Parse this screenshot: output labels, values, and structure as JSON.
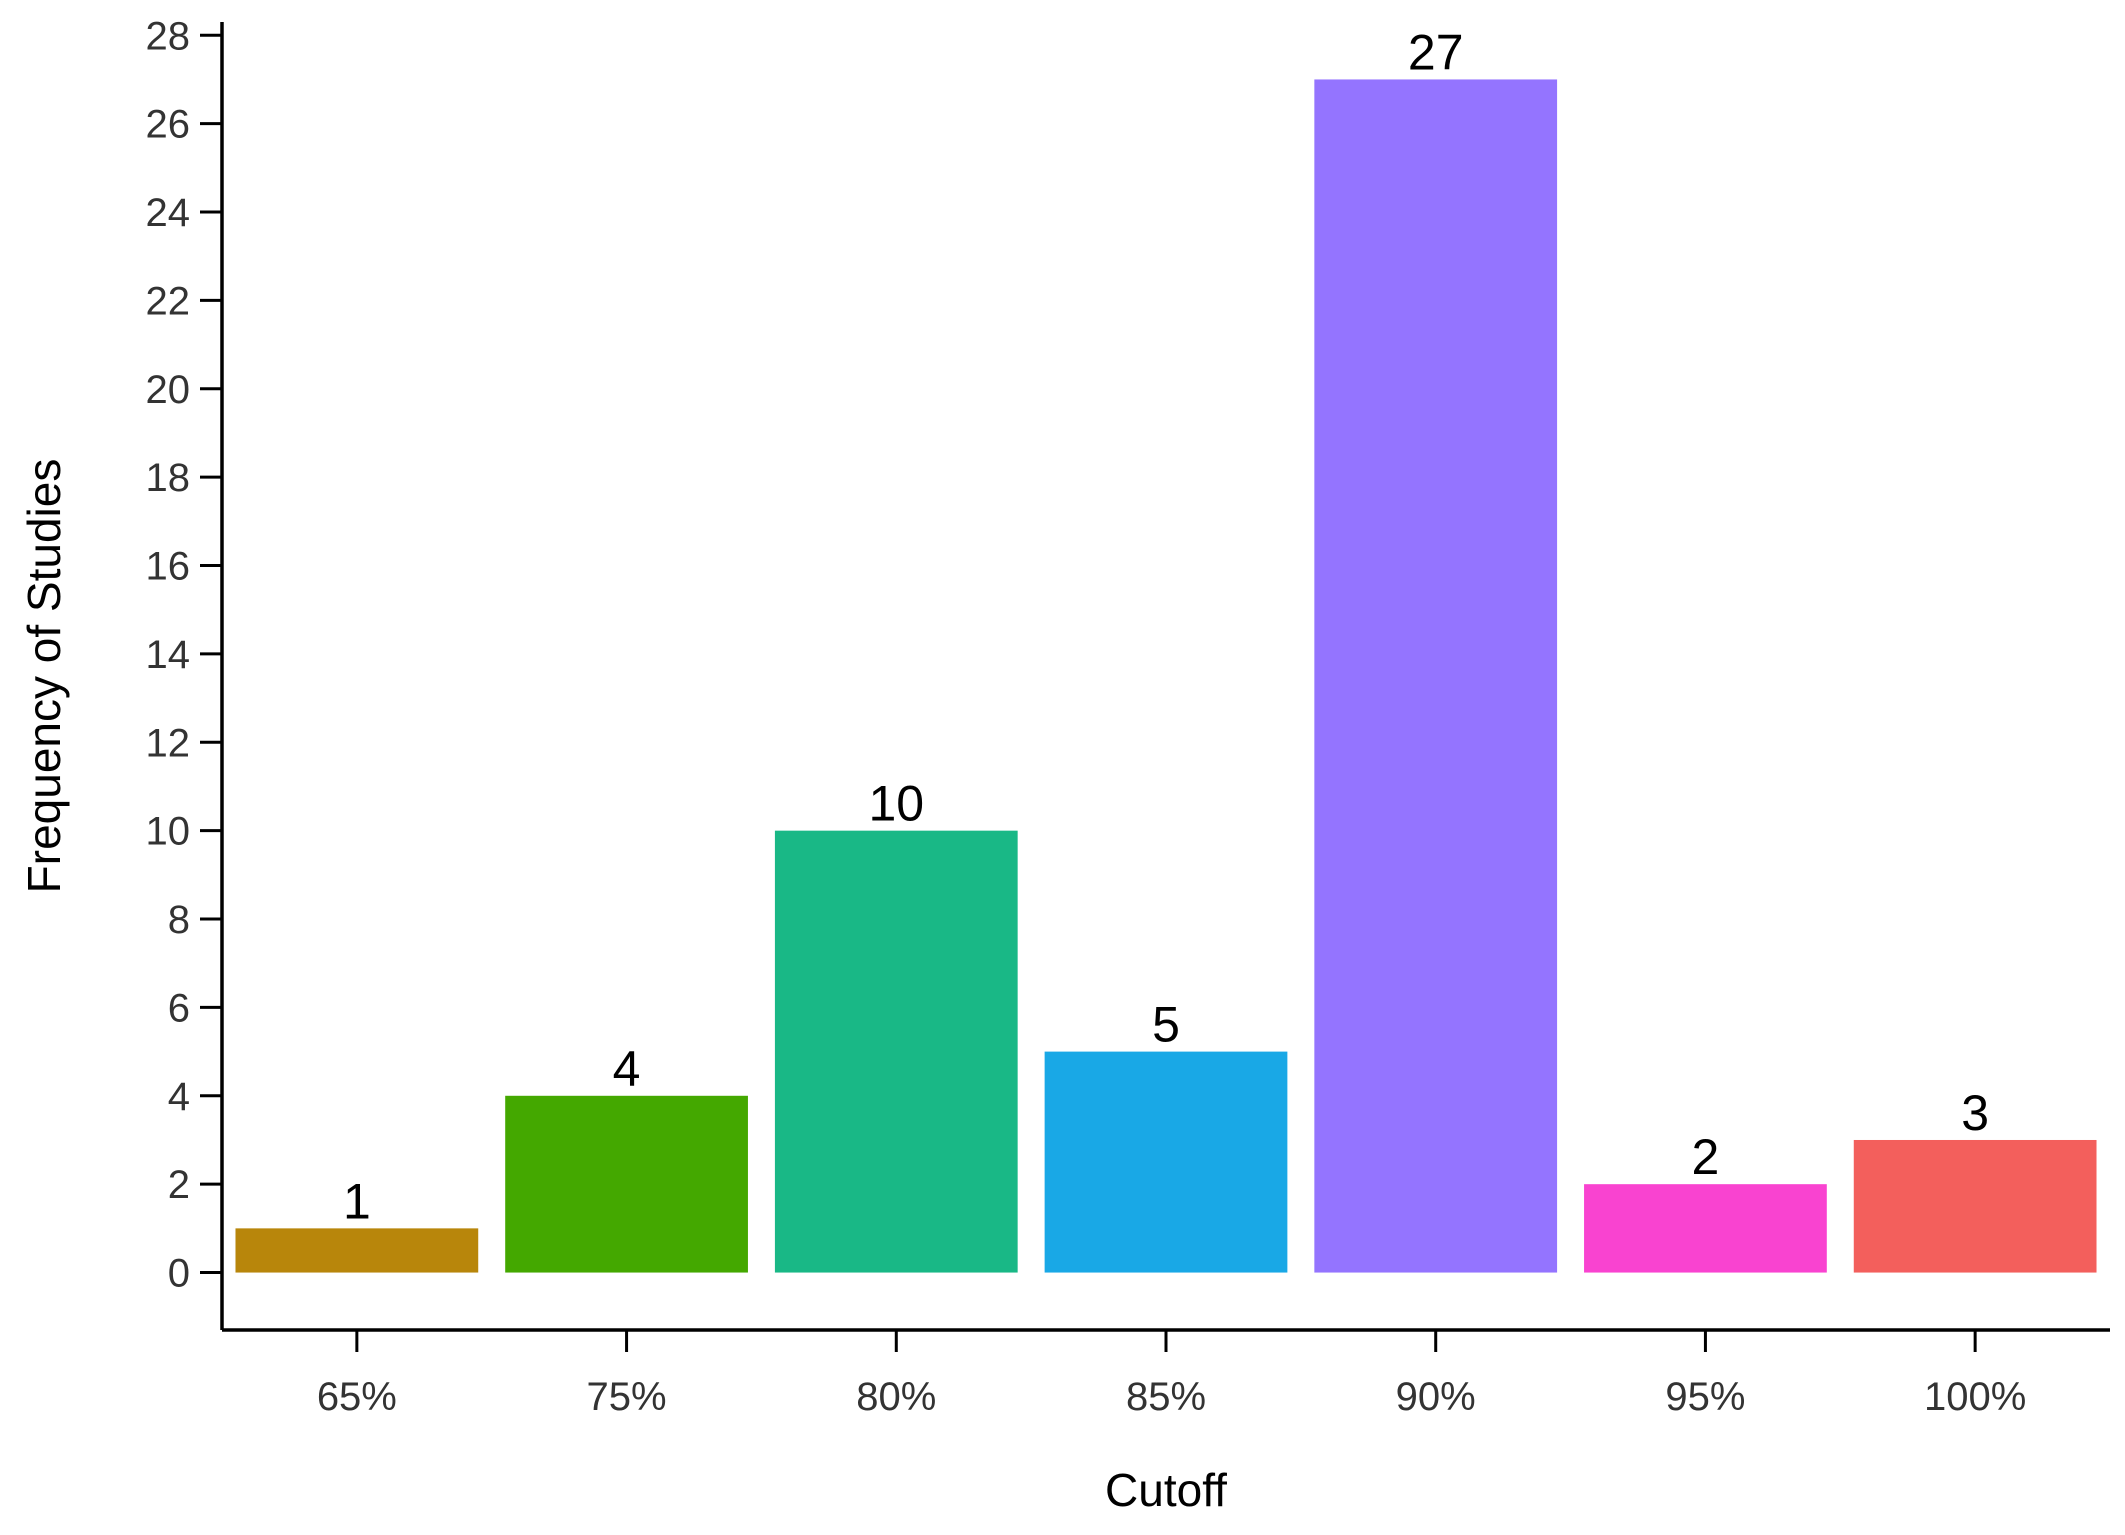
{
  "chart_data": {
    "type": "bar",
    "categories": [
      "65%",
      "75%",
      "80%",
      "85%",
      "90%",
      "95%",
      "100%"
    ],
    "values": [
      1,
      4,
      10,
      5,
      27,
      2,
      3
    ],
    "colors": [
      "#B8860B",
      "#44A800",
      "#19B886",
      "#19A8E6",
      "#9474FF",
      "#F943D0",
      "#F35F5C"
    ],
    "title": "",
    "xlabel": "Cutoff",
    "ylabel": "Frequency of Studies",
    "ylim": [
      -1.3,
      28.3
    ],
    "yticks": [
      0,
      2,
      4,
      6,
      8,
      10,
      12,
      14,
      16,
      18,
      20,
      22,
      24,
      26,
      28
    ],
    "grid": false,
    "legend": "none",
    "data_labels": true
  }
}
